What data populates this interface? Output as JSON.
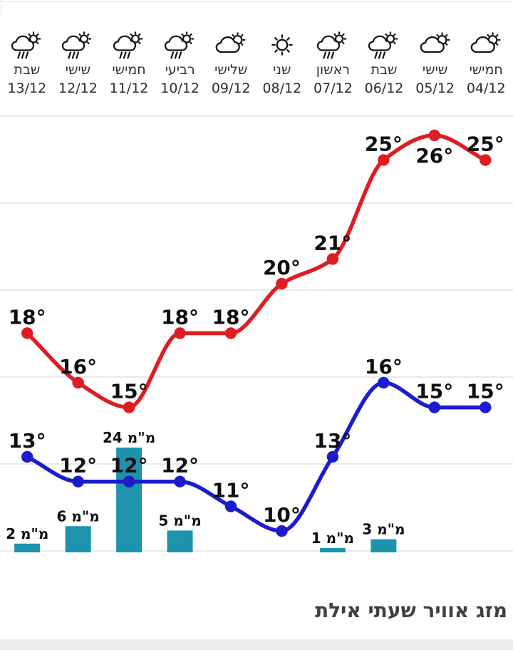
{
  "header": {
    "days": [
      {
        "name": "חמישי",
        "date": "04/12",
        "icon": "sun-cloud-icon"
      },
      {
        "name": "שישי",
        "date": "05/12",
        "icon": "sun-cloud-icon"
      },
      {
        "name": "שבת",
        "date": "06/12",
        "icon": "sun-rain-icon"
      },
      {
        "name": "ראשון",
        "date": "07/12",
        "icon": "sun-rain-icon"
      },
      {
        "name": "שני",
        "date": "08/12",
        "icon": "sun-icon"
      },
      {
        "name": "שלישי",
        "date": "09/12",
        "icon": "sun-cloud-icon"
      },
      {
        "name": "רביעי",
        "date": "10/12",
        "icon": "sun-rain-icon"
      },
      {
        "name": "חמישי",
        "date": "11/12",
        "icon": "sun-rain-icon"
      },
      {
        "name": "שישי",
        "date": "12/12",
        "icon": "sun-rain-icon"
      },
      {
        "name": "שבת",
        "date": "13/12",
        "icon": "sun-rain-icon"
      }
    ]
  },
  "footer": {
    "title": "מזג אוויר שעתי אילת"
  },
  "colors": {
    "high_line": "#de1d23",
    "low_line": "#1c1ccd",
    "bar": "#1e93ae",
    "grid": "#e8e8e8",
    "label_text": "#0f0f0f",
    "day_text": "#2d2d2d",
    "title_text": "#3f3f3f",
    "footer_strip": "#ececec"
  },
  "chart_data": {
    "type": "line+bar",
    "title": "מזג אוויר שעתי אילת",
    "direction": "rtl",
    "grid": "horizontal",
    "legend": "none",
    "categories": [
      "04/12",
      "05/12",
      "06/12",
      "07/12",
      "08/12",
      "09/12",
      "10/12",
      "11/12",
      "12/12",
      "13/12"
    ],
    "temp_unit": "°",
    "precip_unit": "מ\"מ",
    "temp_ylim": [
      9,
      27
    ],
    "series": [
      {
        "name": "high_temp_c",
        "type": "line",
        "color": "#de1d23",
        "values": [
          25,
          26,
          25,
          21,
          20,
          18,
          18,
          15,
          16,
          18
        ],
        "label_positions": [
          "above",
          "below",
          "above",
          "above",
          "above",
          "above",
          "above",
          "above",
          "above",
          "above"
        ]
      },
      {
        "name": "low_temp_c",
        "type": "line",
        "color": "#1c1ccd",
        "values": [
          15,
          15,
          16,
          13,
          10,
          11,
          12,
          12,
          12,
          13
        ],
        "label_positions": [
          "above",
          "above",
          "above",
          "above",
          "above",
          "above",
          "above",
          "above",
          "above",
          "above"
        ]
      },
      {
        "name": "precipitation_mm",
        "type": "bar",
        "color": "#1e93ae",
        "values": [
          0,
          0,
          3,
          1,
          0,
          0,
          5,
          24,
          6,
          2
        ]
      }
    ]
  }
}
